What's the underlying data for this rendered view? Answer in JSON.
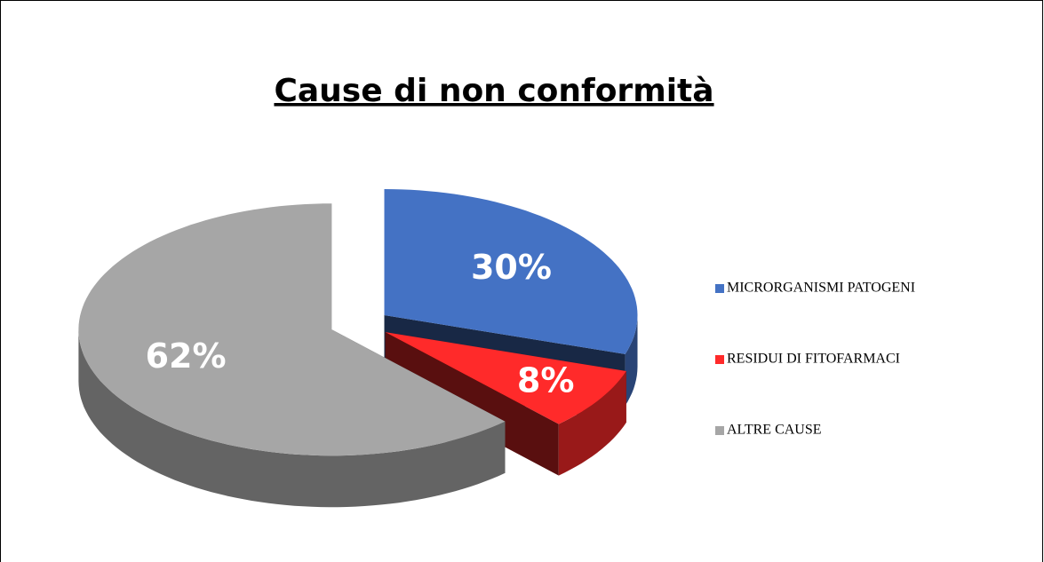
{
  "chart_data": {
    "type": "pie3d",
    "title": "Cause di non conformità",
    "categories": [
      "MICRORGANISMI PATOGENI",
      "RESIDUI DI FITOFARMACI",
      "ALTRE CAUSE"
    ],
    "values": [
      30,
      8,
      62
    ],
    "value_labels": [
      "30%",
      "8%",
      "62%"
    ],
    "colors": [
      "#4472c4",
      "#ff2a2a",
      "#a6a6a6"
    ],
    "legend": "right"
  }
}
